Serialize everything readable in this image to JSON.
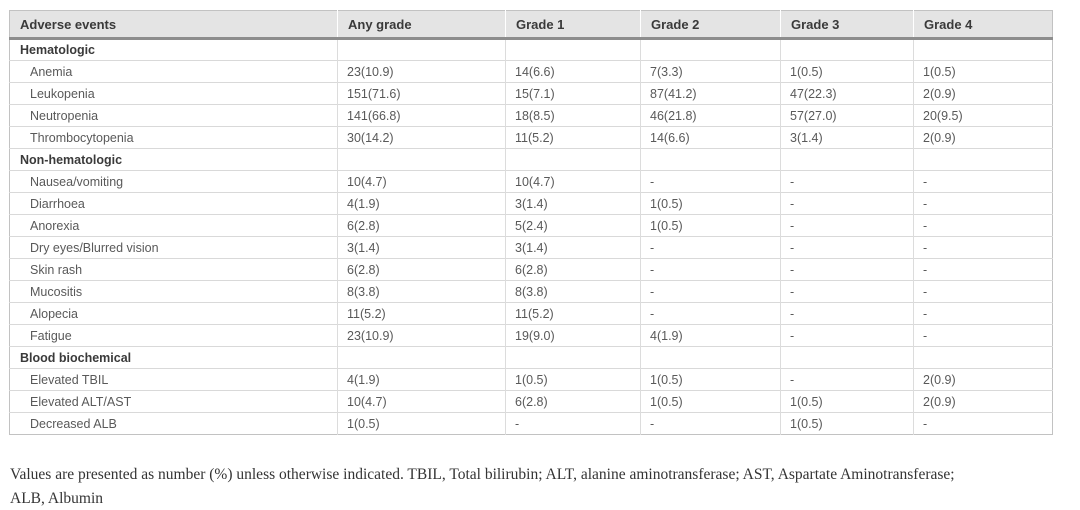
{
  "table": {
    "columns": [
      "Adverse events",
      "Any grade",
      "Grade 1",
      "Grade 2",
      "Grade 3",
      "Grade 4"
    ],
    "sections": [
      {
        "title": "Hematologic",
        "rows": [
          {
            "label": "Anemia",
            "values": [
              "23(10.9)",
              "14(6.6)",
              "7(3.3)",
              "1(0.5)",
              "1(0.5)"
            ]
          },
          {
            "label": "Leukopenia",
            "values": [
              "151(71.6)",
              "15(7.1)",
              "87(41.2)",
              "47(22.3)",
              "2(0.9)"
            ]
          },
          {
            "label": "Neutropenia",
            "values": [
              "141(66.8)",
              "18(8.5)",
              "46(21.8)",
              "57(27.0)",
              "20(9.5)"
            ]
          },
          {
            "label": "Thrombocytopenia",
            "values": [
              "30(14.2)",
              "11(5.2)",
              "14(6.6)",
              "3(1.4)",
              "2(0.9)"
            ]
          }
        ]
      },
      {
        "title": "Non-hematologic",
        "rows": [
          {
            "label": "Nausea/vomiting",
            "values": [
              "10(4.7)",
              "10(4.7)",
              "-",
              "-",
              "-"
            ]
          },
          {
            "label": "Diarrhoea",
            "values": [
              "4(1.9)",
              "3(1.4)",
              "1(0.5)",
              "-",
              "-"
            ]
          },
          {
            "label": "Anorexia",
            "values": [
              "6(2.8)",
              "5(2.4)",
              "1(0.5)",
              "-",
              "-"
            ]
          },
          {
            "label": "Dry eyes/Blurred vision",
            "values": [
              "3(1.4)",
              "3(1.4)",
              "-",
              "-",
              "-"
            ]
          },
          {
            "label": "Skin rash",
            "values": [
              "6(2.8)",
              "6(2.8)",
              "-",
              "-",
              "-"
            ]
          },
          {
            "label": "Mucositis",
            "values": [
              "8(3.8)",
              "8(3.8)",
              "-",
              "-",
              "-"
            ]
          },
          {
            "label": "Alopecia",
            "values": [
              "11(5.2)",
              "11(5.2)",
              "-",
              "-",
              "-"
            ]
          },
          {
            "label": "Fatigue",
            "values": [
              "23(10.9)",
              "19(9.0)",
              "4(1.9)",
              "-",
              "-"
            ]
          }
        ]
      },
      {
        "title": "Blood biochemical",
        "rows": [
          {
            "label": "Elevated TBIL",
            "values": [
              "4(1.9)",
              "1(0.5)",
              "1(0.5)",
              "-",
              "2(0.9)"
            ]
          },
          {
            "label": "Elevated ALT/AST",
            "values": [
              "10(4.7)",
              "6(2.8)",
              "1(0.5)",
              "1(0.5)",
              "2(0.9)"
            ]
          },
          {
            "label": "Decreased ALB",
            "values": [
              "1(0.5)",
              "-",
              "-",
              "1(0.5)",
              "-"
            ]
          }
        ]
      }
    ]
  },
  "footnote": {
    "line1": "Values are presented as number (%) unless otherwise indicated. TBIL, Total bilirubin; ALT, alanine aminotransferase; AST, Aspartate Aminotransferase;",
    "line2": "ALB, Albumin"
  },
  "colors": {
    "header_bg": "#e4e4e4",
    "header_rule": "#8d8d8d",
    "grid_line": "#d9d9d9",
    "outer_border": "#c2c2c2",
    "header_text": "#3a3a3a",
    "body_text": "#595959"
  }
}
